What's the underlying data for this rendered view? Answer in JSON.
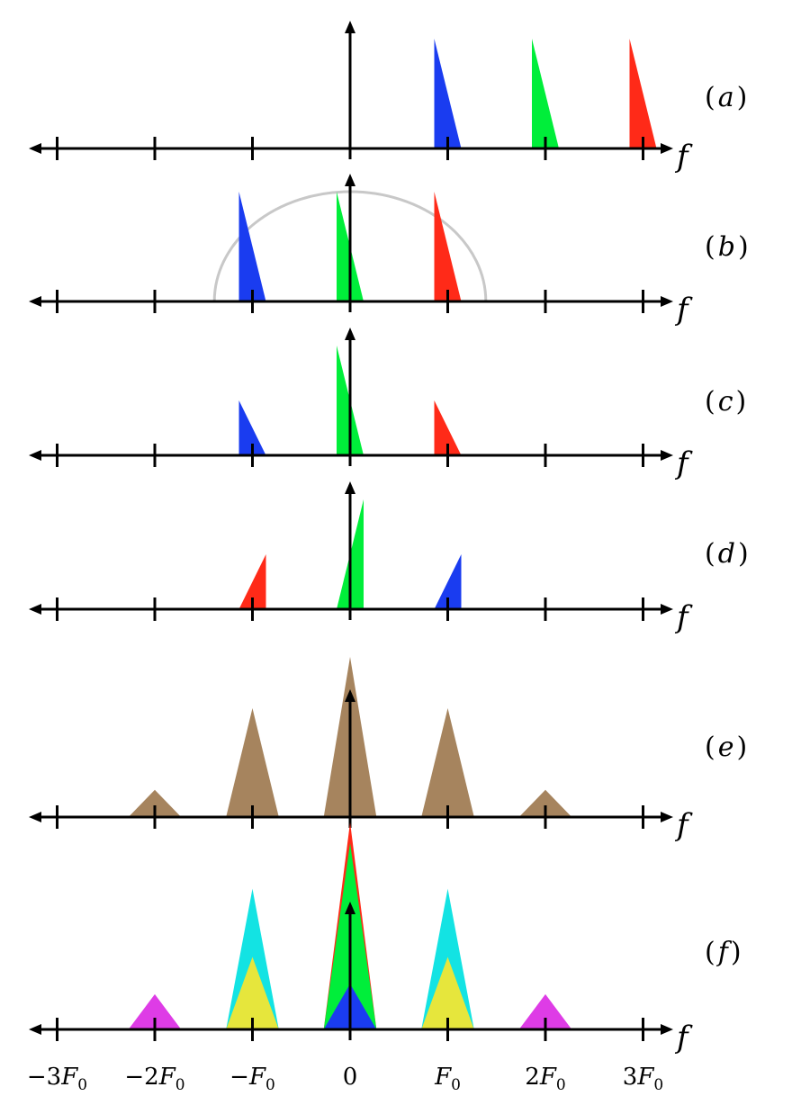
{
  "diagram": {
    "axis_variable": "f",
    "tick_labels": [
      {
        "text": "−3",
        "sub": "0",
        "value": -3
      },
      {
        "text": "−2",
        "sub": "0",
        "value": -2
      },
      {
        "text": "−",
        "sub": "0",
        "value": -1
      },
      {
        "text": "0",
        "sub": "",
        "value": 0
      },
      {
        "text": "",
        "sub": "0",
        "value": 1
      },
      {
        "text": "2",
        "sub": "0",
        "value": 2
      },
      {
        "text": "3",
        "sub": "0",
        "value": 3
      }
    ],
    "tick_symbol": "F",
    "colors": {
      "blue": "#1a3cf0",
      "green": "#00ee3a",
      "red": "#ff2a18",
      "brown": "#a6845e",
      "cyan": "#13e3e3",
      "yellow": "#e6e63c",
      "magenta": "#de3ce6",
      "arc": "#c8c8c8"
    },
    "panels": [
      {
        "label": "a",
        "shapes": [
          {
            "kind": "wedge-down",
            "center": 1,
            "height": 1.0,
            "color": "blue"
          },
          {
            "kind": "wedge-down",
            "center": 2,
            "height": 1.0,
            "color": "green"
          },
          {
            "kind": "wedge-down",
            "center": 3,
            "height": 1.0,
            "color": "red"
          }
        ]
      },
      {
        "label": "b",
        "arc": {
          "center": 0,
          "radius": 1.39,
          "height": 1.0
        },
        "shapes": [
          {
            "kind": "wedge-down",
            "center": -1,
            "height": 1.0,
            "color": "blue"
          },
          {
            "kind": "wedge-down",
            "center": 0,
            "height": 1.0,
            "color": "green"
          },
          {
            "kind": "wedge-down",
            "center": 1,
            "height": 1.0,
            "color": "red"
          }
        ]
      },
      {
        "label": "c",
        "shapes": [
          {
            "kind": "wedge-down",
            "center": -1,
            "height": 0.5,
            "color": "blue"
          },
          {
            "kind": "wedge-down",
            "center": 0,
            "height": 1.0,
            "color": "green"
          },
          {
            "kind": "wedge-down",
            "center": 1,
            "height": 0.5,
            "color": "red"
          }
        ]
      },
      {
        "label": "d",
        "shapes": [
          {
            "kind": "wedge-up",
            "center": -1,
            "height": 0.5,
            "color": "red"
          },
          {
            "kind": "wedge-up",
            "center": 0,
            "height": 1.0,
            "color": "green"
          },
          {
            "kind": "wedge-up",
            "center": 1,
            "height": 0.5,
            "color": "blue"
          }
        ]
      },
      {
        "label": "e",
        "shapes": [
          {
            "kind": "triangle",
            "center": -2,
            "height": 0.17,
            "halfwidth": 0.27,
            "color": "brown"
          },
          {
            "kind": "triangle",
            "center": -1,
            "height": 0.68,
            "halfwidth": 0.27,
            "color": "brown"
          },
          {
            "kind": "triangle",
            "center": 0,
            "height": 1.0,
            "halfwidth": 0.27,
            "color": "brown"
          },
          {
            "kind": "triangle",
            "center": 1,
            "height": 0.68,
            "halfwidth": 0.27,
            "color": "brown"
          },
          {
            "kind": "triangle",
            "center": 2,
            "height": 0.17,
            "halfwidth": 0.27,
            "color": "brown"
          }
        ]
      },
      {
        "label": "f",
        "shapes": [
          {
            "kind": "triangle",
            "center": -2,
            "height": 0.17,
            "halfwidth": 0.27,
            "color": "magenta"
          },
          {
            "kind": "triangle",
            "center": -1,
            "height": 0.68,
            "halfwidth": 0.27,
            "color": "cyan"
          },
          {
            "kind": "triangle",
            "center": -1,
            "height": 0.35,
            "halfwidth": 0.27,
            "color": "yellow"
          },
          {
            "kind": "triangle",
            "center": 0,
            "height": 1.0,
            "halfwidth": 0.27,
            "color": "red"
          },
          {
            "kind": "triangle",
            "center": 0,
            "height": 0.9,
            "halfwidth": 0.27,
            "color": "green"
          },
          {
            "kind": "triangle",
            "center": 0,
            "height": 0.22,
            "halfwidth": 0.27,
            "color": "blue"
          },
          {
            "kind": "triangle",
            "center": 1,
            "height": 0.68,
            "halfwidth": 0.27,
            "color": "cyan"
          },
          {
            "kind": "triangle",
            "center": 1,
            "height": 0.35,
            "halfwidth": 0.27,
            "color": "yellow"
          },
          {
            "kind": "triangle",
            "center": 2,
            "height": 0.17,
            "halfwidth": 0.27,
            "color": "magenta"
          }
        ]
      }
    ]
  }
}
